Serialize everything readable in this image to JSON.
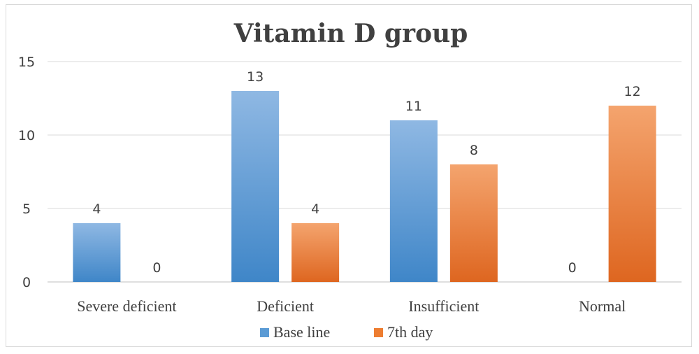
{
  "chart_data": {
    "type": "bar",
    "title": "Vitamin D group",
    "categories": [
      "Severe deficient",
      "Deficient",
      "Insufficient",
      "Normal"
    ],
    "series": [
      {
        "name": "Base line",
        "values": [
          4,
          13,
          11,
          0
        ],
        "color": "#5b9bd5"
      },
      {
        "name": "7th day",
        "values": [
          0,
          4,
          8,
          12
        ],
        "color": "#ed7d31"
      }
    ],
    "ylim": [
      0,
      15
    ],
    "yticks": [
      0,
      5,
      10,
      15
    ],
    "grid": true,
    "legend": "bottom"
  }
}
